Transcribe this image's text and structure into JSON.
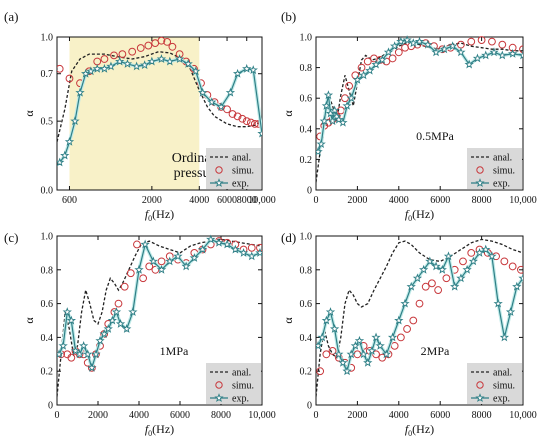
{
  "colors": {
    "analytical": "#222222",
    "simulation": "#c8383c",
    "experiment": "#2f7f86",
    "experiment_fill": "#bfeae8",
    "highlight": "#f8f1c8",
    "legend_bg": "#d9d9d9"
  },
  "chart_data": [
    {
      "type": "line",
      "panel": "(a)",
      "annotation_lines": [
        "Ordinary",
        "pressure"
      ],
      "xlabel": "f0(Hz)",
      "ylabel": "α",
      "x_scale": "log",
      "xlim": [
        500,
        10000
      ],
      "ylim": [
        0,
        1
      ],
      "xticks": [
        600,
        2000,
        4000,
        6000,
        8000,
        10000
      ],
      "xtick_labels": [
        "600",
        "2000",
        "4000",
        "6000",
        "8000",
        "10,000"
      ],
      "yticks": [
        0,
        0.5,
        0.7,
        1
      ],
      "ytick_labels": [
        "0.0",
        "0.5",
        "0.7",
        "1.0"
      ],
      "y_scale": "log-like",
      "highlight_band": [
        600,
        4000
      ],
      "legend": [
        "anal.",
        "simu.",
        "exp."
      ],
      "legend_position": "bottom-right",
      "series": [
        {
          "name": "anal.",
          "style": "dashed",
          "x": [
            500,
            560,
            620,
            700,
            800,
            1000,
            1200,
            1500,
            1800,
            2200,
            2600,
            3000,
            3500,
            4000,
            4500,
            5000,
            6000,
            7000,
            8000,
            9000,
            10000
          ],
          "y": [
            0.35,
            0.55,
            0.72,
            0.82,
            0.86,
            0.86,
            0.84,
            0.82,
            0.84,
            0.88,
            0.87,
            0.83,
            0.74,
            0.63,
            0.56,
            0.52,
            0.48,
            0.46,
            0.46,
            0.47,
            0.5
          ]
        },
        {
          "name": "simu.",
          "style": "circle",
          "x": [
            520,
            600,
            700,
            800,
            900,
            1000,
            1150,
            1300,
            1500,
            1700,
            1900,
            2100,
            2300,
            2500,
            2700,
            3000,
            3300,
            3700,
            4100,
            4500,
            5000,
            5500,
            6000,
            6500,
            7000,
            7500,
            8000,
            8500,
            9000,
            9500
          ],
          "y": [
            0.74,
            0.68,
            0.66,
            0.72,
            0.8,
            0.82,
            0.85,
            0.86,
            0.88,
            0.91,
            0.93,
            0.95,
            0.97,
            0.96,
            0.92,
            0.86,
            0.8,
            0.74,
            0.66,
            0.61,
            0.58,
            0.56,
            0.55,
            0.53,
            0.52,
            0.51,
            0.5,
            0.49,
            0.48,
            0.48
          ]
        },
        {
          "name": "exp.",
          "style": "star",
          "x": [
            520,
            560,
            600,
            650,
            700,
            760,
            820,
            900,
            1000,
            1100,
            1250,
            1400,
            1600,
            1800,
            2000,
            2300,
            2600,
            3000,
            3400,
            3800,
            4200,
            4800,
            5500,
            6300,
            7000,
            8000,
            8800,
            10000
          ],
          "y": [
            0.2,
            0.25,
            0.35,
            0.5,
            0.62,
            0.7,
            0.72,
            0.74,
            0.74,
            0.76,
            0.8,
            0.78,
            0.76,
            0.77,
            0.8,
            0.82,
            0.8,
            0.82,
            0.78,
            0.72,
            0.62,
            0.58,
            0.56,
            0.62,
            0.7,
            0.74,
            0.73,
            0.41
          ]
        }
      ]
    },
    {
      "type": "line",
      "panel": "(b)",
      "annotation_lines": [
        "0.5MPa"
      ],
      "xlabel": "f0(Hz)",
      "ylabel": "α",
      "xlim": [
        0,
        10000
      ],
      "ylim": [
        0,
        1
      ],
      "xticks": [
        0,
        2000,
        4000,
        6000,
        8000,
        10000
      ],
      "xtick_labels": [
        "0",
        "2000",
        "4000",
        "6000",
        "8000",
        "10,000"
      ],
      "yticks": [
        0,
        0.2,
        0.4,
        0.6,
        0.8,
        1.0
      ],
      "ytick_labels": [
        "0",
        "0.2",
        "0.4",
        "0.6",
        "0.8",
        "1.0"
      ],
      "legend": [
        "anal.",
        "simu.",
        "exp."
      ],
      "legend_position": "bottom-right",
      "series": [
        {
          "name": "anal.",
          "style": "dashed",
          "x": [
            0,
            200,
            400,
            600,
            800,
            1000,
            1200,
            1400,
            1600,
            1800,
            2000,
            2200,
            2400,
            2700,
            3000,
            3500,
            4000,
            4500,
            5000,
            5500,
            6000,
            6500,
            7000,
            7500,
            8000,
            8500,
            9000,
            9500,
            10000
          ],
          "y": [
            0.05,
            0.25,
            0.5,
            0.62,
            0.55,
            0.45,
            0.62,
            0.75,
            0.65,
            0.55,
            0.7,
            0.85,
            0.88,
            0.85,
            0.86,
            0.9,
            0.94,
            0.97,
            0.95,
            0.93,
            0.92,
            0.95,
            0.96,
            0.94,
            0.93,
            0.92,
            0.92,
            0.91,
            0.91
          ]
        },
        {
          "name": "simu.",
          "style": "circle",
          "x": [
            200,
            400,
            600,
            800,
            1000,
            1200,
            1400,
            1600,
            1900,
            2200,
            2500,
            2800,
            3100,
            3400,
            3700,
            4000,
            4300,
            4600,
            4900,
            5300,
            5700,
            6100,
            6500,
            7000,
            7500,
            8000,
            8500,
            9000,
            9500,
            10000
          ],
          "y": [
            0.35,
            0.42,
            0.44,
            0.46,
            0.48,
            0.52,
            0.6,
            0.68,
            0.75,
            0.8,
            0.84,
            0.86,
            0.85,
            0.84,
            0.86,
            0.9,
            0.93,
            0.94,
            0.95,
            0.96,
            0.94,
            0.92,
            0.93,
            0.95,
            0.97,
            0.98,
            0.97,
            0.95,
            0.93,
            0.92
          ]
        },
        {
          "name": "exp.",
          "style": "star",
          "x": [
            100,
            250,
            400,
            500,
            600,
            700,
            800,
            900,
            1000,
            1100,
            1300,
            1500,
            1700,
            2000,
            2300,
            2600,
            2900,
            3200,
            3500,
            3800,
            4100,
            4400,
            4700,
            5000,
            5400,
            5800,
            6200,
            6600,
            7000,
            7400,
            7800,
            8200,
            8600,
            9000,
            9500,
            10000
          ],
          "y": [
            0.25,
            0.3,
            0.45,
            0.55,
            0.62,
            0.5,
            0.45,
            0.52,
            0.48,
            0.46,
            0.44,
            0.55,
            0.6,
            0.72,
            0.75,
            0.78,
            0.82,
            0.85,
            0.9,
            0.94,
            0.97,
            0.98,
            0.96,
            0.97,
            0.95,
            0.9,
            0.92,
            0.94,
            0.9,
            0.82,
            0.86,
            0.88,
            0.9,
            0.88,
            0.89,
            0.88
          ]
        }
      ]
    },
    {
      "type": "line",
      "panel": "(c)",
      "annotation_lines": [
        "1MPa"
      ],
      "xlabel": "f0(Hz)",
      "ylabel": "α",
      "xlim": [
        0,
        10000
      ],
      "ylim": [
        0,
        1
      ],
      "xticks": [
        0,
        2000,
        4000,
        6000,
        8000,
        10000
      ],
      "xtick_labels": [
        "0",
        "2000",
        "4000",
        "6000",
        "8000",
        "10,000"
      ],
      "yticks": [
        0,
        0.2,
        0.4,
        0.6,
        0.8,
        1.0
      ],
      "ytick_labels": [
        "0",
        "0.2",
        "0.4",
        "0.6",
        "0.8",
        "1.0"
      ],
      "legend": [
        "anal.",
        "simu.",
        "exp."
      ],
      "legend_position": "bottom-right",
      "series": [
        {
          "name": "anal.",
          "style": "dashed",
          "x": [
            0,
            200,
            400,
            600,
            800,
            1000,
            1200,
            1400,
            1600,
            1800,
            2000,
            2200,
            2400,
            2600,
            2800,
            3000,
            3200,
            3500,
            3800,
            4100,
            4500,
            5000,
            5500,
            6000,
            6500,
            7000,
            7500,
            8000,
            8500,
            9000,
            9500,
            10000
          ],
          "y": [
            0.05,
            0.3,
            0.55,
            0.45,
            0.3,
            0.35,
            0.55,
            0.68,
            0.6,
            0.5,
            0.48,
            0.55,
            0.68,
            0.75,
            0.72,
            0.68,
            0.72,
            0.8,
            0.88,
            0.95,
            0.97,
            0.94,
            0.92,
            0.9,
            0.94,
            0.96,
            0.97,
            0.98,
            0.97,
            0.96,
            0.95,
            0.94
          ]
        },
        {
          "name": "simu.",
          "style": "circle",
          "x": [
            200,
            500,
            700,
            900,
            1100,
            1300,
            1500,
            1700,
            1900,
            2100,
            2300,
            2500,
            2800,
            3000,
            3300,
            3600,
            3900,
            4200,
            4500,
            4800,
            5100,
            5500,
            5900,
            6300,
            6700,
            7100,
            7500,
            7900,
            8300,
            8700,
            9100,
            9500,
            9900
          ],
          "y": [
            0.3,
            0.3,
            0.28,
            0.32,
            0.3,
            0.3,
            0.25,
            0.22,
            0.3,
            0.35,
            0.42,
            0.48,
            0.55,
            0.6,
            0.7,
            0.78,
            0.95,
            0.75,
            0.82,
            0.8,
            0.85,
            0.88,
            0.86,
            0.84,
            0.9,
            0.92,
            0.95,
            0.97,
            0.96,
            0.95,
            0.92,
            0.93,
            0.93
          ]
        },
        {
          "name": "exp.",
          "style": "star",
          "x": [
            100,
            300,
            500,
            700,
            900,
            1100,
            1300,
            1500,
            1700,
            1900,
            2100,
            2300,
            2500,
            2700,
            2900,
            3100,
            3400,
            3700,
            4000,
            4300,
            4700,
            5100,
            5500,
            5900,
            6300,
            6700,
            7100,
            7500,
            7900,
            8300,
            8700,
            9100,
            9500,
            9900
          ],
          "y": [
            0.3,
            0.35,
            0.55,
            0.5,
            0.32,
            0.3,
            0.35,
            0.3,
            0.22,
            0.3,
            0.38,
            0.42,
            0.45,
            0.5,
            0.55,
            0.48,
            0.45,
            0.55,
            0.8,
            0.95,
            0.85,
            0.8,
            0.85,
            0.88,
            0.82,
            0.87,
            0.92,
            0.98,
            0.96,
            0.95,
            0.92,
            0.9,
            0.88,
            0.9
          ]
        }
      ]
    },
    {
      "type": "line",
      "panel": "(d)",
      "annotation_lines": [
        "2MPa"
      ],
      "xlabel": "f0(Hz)",
      "ylabel": "α",
      "xlim": [
        0,
        10000
      ],
      "ylim": [
        0,
        1
      ],
      "xticks": [
        0,
        2000,
        4000,
        6000,
        8000,
        10000
      ],
      "xtick_labels": [
        "0",
        "2000",
        "4000",
        "6000",
        "8000",
        "10,000"
      ],
      "yticks": [
        0,
        0.2,
        0.4,
        0.6,
        0.8,
        1.0
      ],
      "ytick_labels": [
        "0",
        "0.2",
        "0.4",
        "0.6",
        "0.8",
        "1.0"
      ],
      "legend": [
        "anal.",
        "simu.",
        "exp."
      ],
      "legend_position": "bottom-right",
      "series": [
        {
          "name": "anal.",
          "style": "dashed",
          "x": [
            0,
            200,
            400,
            600,
            800,
            1000,
            1200,
            1400,
            1600,
            1800,
            2000,
            2200,
            2500,
            2800,
            3100,
            3400,
            3700,
            4000,
            4300,
            4600,
            5000,
            5500,
            6000,
            6500,
            7000,
            7500,
            8000,
            8500,
            9000,
            9500,
            10000
          ],
          "y": [
            0.05,
            0.3,
            0.45,
            0.35,
            0.3,
            0.28,
            0.4,
            0.6,
            0.68,
            0.65,
            0.6,
            0.58,
            0.6,
            0.68,
            0.75,
            0.82,
            0.9,
            0.96,
            0.97,
            0.95,
            0.9,
            0.86,
            0.85,
            0.88,
            0.92,
            0.96,
            0.98,
            0.97,
            0.95,
            0.92,
            0.9
          ]
        },
        {
          "name": "simu.",
          "style": "circle",
          "x": [
            200,
            500,
            800,
            1100,
            1400,
            1700,
            2000,
            2300,
            2600,
            2900,
            3200,
            3500,
            3800,
            4100,
            4400,
            4700,
            5000,
            5300,
            5600,
            5900,
            6300,
            6700,
            7100,
            7500,
            7900,
            8300,
            8700,
            9100,
            9500,
            9900
          ],
          "y": [
            0.2,
            0.3,
            0.32,
            0.28,
            0.25,
            0.22,
            0.3,
            0.35,
            0.32,
            0.3,
            0.28,
            0.3,
            0.35,
            0.4,
            0.45,
            0.5,
            0.6,
            0.7,
            0.72,
            0.68,
            0.75,
            0.8,
            0.85,
            0.9,
            0.92,
            0.9,
            0.88,
            0.85,
            0.82,
            0.8
          ]
        },
        {
          "name": "exp.",
          "style": "star",
          "x": [
            100,
            300,
            500,
            700,
            900,
            1100,
            1300,
            1500,
            1700,
            1900,
            2100,
            2300,
            2500,
            2700,
            2900,
            3100,
            3400,
            3700,
            4000,
            4300,
            4600,
            4900,
            5200,
            5500,
            5800,
            6100,
            6400,
            6700,
            7000,
            7300,
            7600,
            7900,
            8200,
            8500,
            8800,
            9100,
            9400,
            9700,
            10000
          ],
          "y": [
            0.35,
            0.4,
            0.5,
            0.55,
            0.45,
            0.3,
            0.25,
            0.2,
            0.3,
            0.35,
            0.38,
            0.3,
            0.25,
            0.32,
            0.4,
            0.35,
            0.3,
            0.4,
            0.5,
            0.6,
            0.7,
            0.75,
            0.8,
            0.85,
            0.82,
            0.8,
            0.88,
            0.7,
            0.75,
            0.8,
            0.85,
            0.9,
            0.92,
            0.88,
            0.6,
            0.4,
            0.55,
            0.7,
            0.75
          ]
        }
      ]
    }
  ]
}
